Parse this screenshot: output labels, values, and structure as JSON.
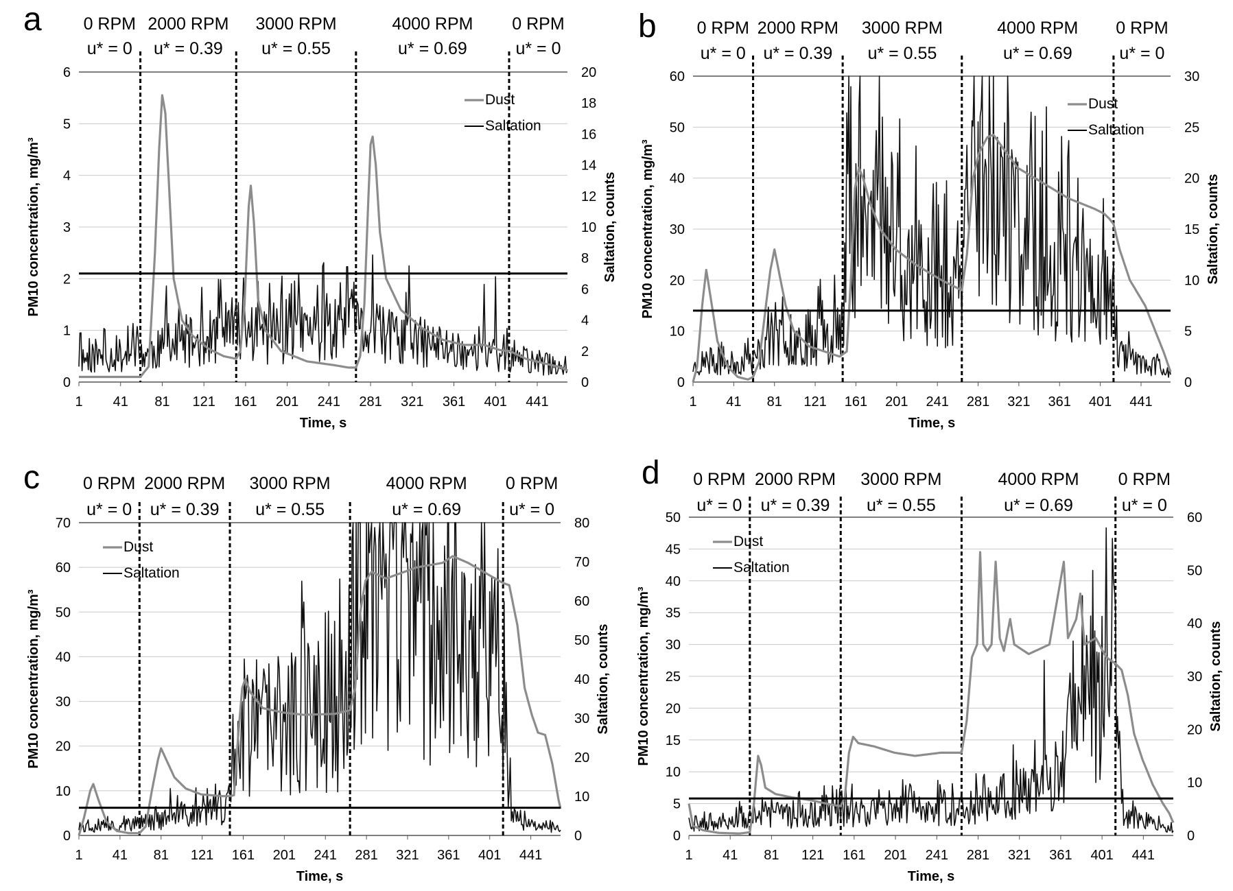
{
  "chart_data": [
    {
      "type": "line",
      "panel_label": "a",
      "xlabel": "Time, s",
      "ylabel": "PM10 concentration, mg/m³",
      "y2label": "Saltation, counts",
      "x_range": [
        1,
        470
      ],
      "x_ticks": [
        "1",
        "41",
        "81",
        "121",
        "161",
        "201",
        "241",
        "281",
        "321",
        "361",
        "401",
        "441"
      ],
      "ylim": [
        0,
        6
      ],
      "y_ticks": [
        "0",
        "1",
        "2",
        "3",
        "4",
        "5",
        "6"
      ],
      "y2lim": [
        0,
        20
      ],
      "y2_ticks": [
        "0",
        "2",
        "4",
        "6",
        "8",
        "10",
        "12",
        "14",
        "16",
        "18",
        "20"
      ],
      "legend": [
        "Dust",
        "Saltation"
      ],
      "legend_position": "top-right",
      "phase_labels": [
        {
          "rpm": "0 RPM",
          "u": "u* = 0"
        },
        {
          "rpm": "2000 RPM",
          "u": "u* = 0.39"
        },
        {
          "rpm": "3000 RPM",
          "u": "u* = 0.55"
        },
        {
          "rpm": "4000 RPM",
          "u": "u* = 0.69"
        },
        {
          "rpm": "0 RPM",
          "u": "u* = 0"
        }
      ],
      "phase_boundaries": [
        60,
        152,
        267,
        414
      ],
      "threshold_y": 2.1,
      "dust_line": [
        [
          1,
          0.1
        ],
        [
          40,
          0.1
        ],
        [
          60,
          0.1
        ],
        [
          68,
          0.3
        ],
        [
          74,
          2.5
        ],
        [
          78,
          4.5
        ],
        [
          81,
          5.55
        ],
        [
          84,
          5.2
        ],
        [
          88,
          3.6
        ],
        [
          92,
          2.0
        ],
        [
          100,
          1.2
        ],
        [
          110,
          0.9
        ],
        [
          125,
          0.65
        ],
        [
          140,
          0.5
        ],
        [
          152,
          0.45
        ],
        [
          156,
          0.6
        ],
        [
          160,
          1.5
        ],
        [
          164,
          3.4
        ],
        [
          166,
          3.8
        ],
        [
          169,
          3.1
        ],
        [
          173,
          1.6
        ],
        [
          180,
          1.0
        ],
        [
          195,
          0.6
        ],
        [
          220,
          0.4
        ],
        [
          245,
          0.33
        ],
        [
          260,
          0.28
        ],
        [
          267,
          0.28
        ],
        [
          271,
          0.5
        ],
        [
          275,
          1.5
        ],
        [
          279,
          3.6
        ],
        [
          281,
          4.6
        ],
        [
          283,
          4.75
        ],
        [
          286,
          4.2
        ],
        [
          290,
          2.9
        ],
        [
          296,
          2.0
        ],
        [
          310,
          1.4
        ],
        [
          330,
          1.05
        ],
        [
          350,
          0.82
        ],
        [
          370,
          0.72
        ],
        [
          390,
          0.72
        ],
        [
          405,
          0.62
        ],
        [
          414,
          0.6
        ],
        [
          420,
          0.55
        ],
        [
          430,
          0.45
        ],
        [
          450,
          0.35
        ],
        [
          465,
          0.28
        ],
        [
          470,
          0.22
        ]
      ],
      "salt_level": [
        [
          1,
          1.5
        ],
        [
          60,
          1.8
        ],
        [
          152,
          3.2
        ],
        [
          267,
          3.3
        ],
        [
          414,
          1.5
        ],
        [
          470,
          1.0
        ]
      ],
      "salt_spikes": [
        [
          85,
          6.2
        ],
        [
          212,
          7.0
        ],
        [
          236,
          7.7
        ],
        [
          283,
          8.2
        ],
        [
          318,
          7.5
        ],
        [
          390,
          6.3
        ],
        [
          401,
          6.8
        ]
      ],
      "salt_seed": 11
    },
    {
      "type": "line",
      "panel_label": "b",
      "xlabel": "Time, s",
      "ylabel": "PM10 concentration, mg/m³",
      "y2label": "Saltation, counts",
      "x_range": [
        1,
        470
      ],
      "x_ticks": [
        "1",
        "41",
        "81",
        "121",
        "161",
        "201",
        "241",
        "281",
        "321",
        "361",
        "401",
        "441"
      ],
      "ylim": [
        0,
        60
      ],
      "y_ticks": [
        "0",
        "10",
        "20",
        "30",
        "40",
        "50",
        "60"
      ],
      "y2lim": [
        0,
        30
      ],
      "y2_ticks": [
        "0",
        "5",
        "10",
        "15",
        "20",
        "25",
        "30"
      ],
      "legend": [
        "Dust",
        "Saltation"
      ],
      "legend_position": "top-right",
      "phase_labels": [
        {
          "rpm": "0 RPM",
          "u": "u* = 0"
        },
        {
          "rpm": "2000 RPM",
          "u": "u* = 0.39"
        },
        {
          "rpm": "3000 RPM",
          "u": "u* = 0.55"
        },
        {
          "rpm": "4000 RPM",
          "u": "u* = 0.69"
        },
        {
          "rpm": "0 RPM",
          "u": "u* = 0"
        }
      ],
      "phase_boundaries": [
        60,
        148,
        265,
        414
      ],
      "threshold_y": 14.0,
      "dust_line": [
        [
          1,
          0
        ],
        [
          5,
          3
        ],
        [
          10,
          15
        ],
        [
          14,
          22
        ],
        [
          18,
          17
        ],
        [
          25,
          8
        ],
        [
          35,
          3
        ],
        [
          45,
          1
        ],
        [
          55,
          0.5
        ],
        [
          60,
          1
        ],
        [
          66,
          4
        ],
        [
          72,
          14
        ],
        [
          77,
          22
        ],
        [
          81,
          26
        ],
        [
          85,
          22
        ],
        [
          92,
          15
        ],
        [
          100,
          10
        ],
        [
          115,
          7
        ],
        [
          130,
          6
        ],
        [
          145,
          5
        ],
        [
          152,
          6
        ],
        [
          156,
          20
        ],
        [
          160,
          38
        ],
        [
          164,
          42
        ],
        [
          168,
          40
        ],
        [
          175,
          35
        ],
        [
          185,
          30
        ],
        [
          200,
          26
        ],
        [
          220,
          23
        ],
        [
          245,
          20
        ],
        [
          265,
          18
        ],
        [
          270,
          25
        ],
        [
          276,
          40
        ],
        [
          282,
          45
        ],
        [
          290,
          48
        ],
        [
          296,
          48.5
        ],
        [
          305,
          46
        ],
        [
          320,
          42
        ],
        [
          345,
          39
        ],
        [
          370,
          36
        ],
        [
          395,
          34
        ],
        [
          405,
          33
        ],
        [
          410,
          32
        ],
        [
          414,
          31
        ],
        [
          420,
          26
        ],
        [
          430,
          20
        ],
        [
          445,
          15
        ],
        [
          455,
          10
        ],
        [
          463,
          6
        ],
        [
          470,
          2
        ]
      ],
      "salt_level": [
        [
          1,
          1.5
        ],
        [
          60,
          2.0
        ],
        [
          70,
          3.5
        ],
        [
          148,
          5.0
        ],
        [
          152,
          17.0
        ],
        [
          180,
          15.0
        ],
        [
          190,
          12.0
        ],
        [
          265,
          8.0
        ],
        [
          268,
          17.0
        ],
        [
          320,
          15.0
        ],
        [
          360,
          11.0
        ],
        [
          414,
          8.0
        ],
        [
          420,
          2.5
        ],
        [
          470,
          1.0
        ]
      ],
      "salt_spikes": [
        [
          164,
          27.0
        ],
        [
          180,
          21.0
        ],
        [
          289,
          21.0
        ],
        [
          300,
          24.0
        ],
        [
          305,
          22.0
        ],
        [
          318,
          22.0
        ],
        [
          379,
          20.0
        ],
        [
          404,
          18.0
        ]
      ],
      "salt_seed": 23
    },
    {
      "type": "line",
      "panel_label": "c",
      "xlabel": "Time, s",
      "ylabel": "PM10 concentration, mg/m³",
      "y2label": "Saltation, counts",
      "x_range": [
        1,
        470
      ],
      "x_ticks": [
        "1",
        "41",
        "81",
        "121",
        "161",
        "201",
        "241",
        "281",
        "321",
        "361",
        "401",
        "441"
      ],
      "ylim": [
        0,
        70
      ],
      "y_ticks": [
        "0",
        "10",
        "20",
        "30",
        "40",
        "50",
        "60",
        "70"
      ],
      "y2lim": [
        0,
        80
      ],
      "y2_ticks": [
        "0",
        "10",
        "20",
        "30",
        "40",
        "50",
        "60",
        "70",
        "80"
      ],
      "legend": [
        "Dust",
        "Saltation"
      ],
      "legend_position": "top-left",
      "phase_labels": [
        {
          "rpm": "0 RPM",
          "u": "u* = 0"
        },
        {
          "rpm": "2000 RPM",
          "u": "u* = 0.39"
        },
        {
          "rpm": "3000 RPM",
          "u": "u* = 0.55"
        },
        {
          "rpm": "4000 RPM",
          "u": "u* = 0.69"
        },
        {
          "rpm": "0 RPM",
          "u": "u* = 0"
        }
      ],
      "phase_boundaries": [
        60,
        148,
        265,
        414
      ],
      "threshold_y": 6.2,
      "dust_line": [
        [
          1,
          0
        ],
        [
          6,
          4
        ],
        [
          12,
          10
        ],
        [
          15,
          11.5
        ],
        [
          20,
          8
        ],
        [
          28,
          3
        ],
        [
          38,
          1
        ],
        [
          50,
          0.5
        ],
        [
          60,
          0.5
        ],
        [
          66,
          2
        ],
        [
          72,
          10
        ],
        [
          78,
          17
        ],
        [
          81,
          19.5
        ],
        [
          86,
          17
        ],
        [
          94,
          13
        ],
        [
          105,
          10.5
        ],
        [
          120,
          9.2
        ],
        [
          140,
          8.8
        ],
        [
          148,
          8.8
        ],
        [
          152,
          9
        ],
        [
          156,
          22
        ],
        [
          160,
          33
        ],
        [
          163,
          35
        ],
        [
          168,
          32
        ],
        [
          180,
          28.5
        ],
        [
          200,
          27.5
        ],
        [
          220,
          27
        ],
        [
          250,
          27.2
        ],
        [
          265,
          28
        ],
        [
          270,
          33
        ],
        [
          275,
          50
        ],
        [
          280,
          57
        ],
        [
          286,
          59
        ],
        [
          300,
          57.5
        ],
        [
          330,
          60
        ],
        [
          355,
          61
        ],
        [
          365,
          62.5
        ],
        [
          380,
          61
        ],
        [
          395,
          59
        ],
        [
          410,
          57
        ],
        [
          414,
          56.5
        ],
        [
          420,
          56
        ],
        [
          428,
          47
        ],
        [
          435,
          33
        ],
        [
          442,
          27
        ],
        [
          448,
          23
        ],
        [
          455,
          22.5
        ],
        [
          462,
          16
        ],
        [
          468,
          8
        ],
        [
          470,
          6
        ]
      ],
      "salt_level": [
        [
          1,
          2
        ],
        [
          60,
          3
        ],
        [
          148,
          7
        ],
        [
          152,
          27
        ],
        [
          265,
          31
        ],
        [
          268,
          55
        ],
        [
          300,
          55
        ],
        [
          330,
          52
        ],
        [
          360,
          47
        ],
        [
          400,
          42
        ],
        [
          414,
          38
        ],
        [
          420,
          10
        ],
        [
          428,
          3
        ],
        [
          470,
          1.5
        ]
      ],
      "salt_spikes": [
        [
          90,
          12
        ],
        [
          230,
          46
        ],
        [
          290,
          74
        ],
        [
          300,
          72
        ],
        [
          315,
          73
        ],
        [
          320,
          70
        ],
        [
          325,
          75
        ],
        [
          352,
          55
        ],
        [
          395,
          48
        ]
      ],
      "salt_seed": 37
    },
    {
      "type": "line",
      "panel_label": "d",
      "xlabel": "Time, s",
      "ylabel": "PM10 concentration, mg/m³",
      "y2label": "Saltation, counts",
      "x_range": [
        1,
        470
      ],
      "x_ticks": [
        "1",
        "41",
        "81",
        "121",
        "161",
        "201",
        "241",
        "281",
        "321",
        "361",
        "401",
        "441"
      ],
      "ylim": [
        0,
        50
      ],
      "y_ticks": [
        "0",
        "5",
        "10",
        "15",
        "20",
        "25",
        "30",
        "35",
        "40",
        "45",
        "50"
      ],
      "y2lim": [
        0,
        60
      ],
      "y2_ticks": [
        "0",
        "10",
        "20",
        "30",
        "40",
        "50",
        "60"
      ],
      "legend": [
        "Dust",
        "Saltation"
      ],
      "legend_position": "top-left",
      "phase_labels": [
        {
          "rpm": "0 RPM",
          "u": "u* = 0"
        },
        {
          "rpm": "2000 RPM",
          "u": "u* = 0.39"
        },
        {
          "rpm": "3000 RPM",
          "u": "u* = 0.55"
        },
        {
          "rpm": "4000 RPM",
          "u": "u* = 0.69"
        },
        {
          "rpm": "0 RPM",
          "u": "u* = 0"
        }
      ],
      "phase_boundaries": [
        60,
        148,
        265,
        414
      ],
      "threshold_y": 5.8,
      "dust_line": [
        [
          1,
          5
        ],
        [
          5,
          1.5
        ],
        [
          15,
          0.8
        ],
        [
          30,
          0.4
        ],
        [
          50,
          0.3
        ],
        [
          60,
          0.5
        ],
        [
          64,
          5
        ],
        [
          68,
          12.5
        ],
        [
          71,
          11
        ],
        [
          75,
          7.5
        ],
        [
          85,
          6.5
        ],
        [
          100,
          6
        ],
        [
          120,
          5.5
        ],
        [
          140,
          4.8
        ],
        [
          148,
          4.6
        ],
        [
          152,
          6
        ],
        [
          156,
          13
        ],
        [
          160,
          15.5
        ],
        [
          165,
          14.5
        ],
        [
          180,
          14
        ],
        [
          200,
          13
        ],
        [
          220,
          12.5
        ],
        [
          245,
          13
        ],
        [
          265,
          13
        ],
        [
          270,
          18
        ],
        [
          275,
          28
        ],
        [
          280,
          30
        ],
        [
          283,
          44.5
        ],
        [
          286,
          30
        ],
        [
          290,
          29
        ],
        [
          294,
          30
        ],
        [
          298,
          43
        ],
        [
          302,
          31
        ],
        [
          306,
          29
        ],
        [
          312,
          34
        ],
        [
          316,
          30
        ],
        [
          330,
          28.5
        ],
        [
          350,
          30
        ],
        [
          364,
          43
        ],
        [
          368,
          31
        ],
        [
          376,
          34
        ],
        [
          380,
          38
        ],
        [
          384,
          30
        ],
        [
          395,
          31
        ],
        [
          405,
          28
        ],
        [
          414,
          27
        ],
        [
          420,
          26
        ],
        [
          426,
          22
        ],
        [
          432,
          16
        ],
        [
          440,
          12
        ],
        [
          450,
          8
        ],
        [
          460,
          5
        ],
        [
          466,
          3.5
        ],
        [
          470,
          2
        ]
      ],
      "salt_level": [
        [
          1,
          2
        ],
        [
          60,
          3
        ],
        [
          148,
          4.5
        ],
        [
          265,
          5
        ],
        [
          300,
          7
        ],
        [
          330,
          8
        ],
        [
          360,
          12
        ],
        [
          380,
          22
        ],
        [
          405,
          28
        ],
        [
          410,
          38
        ],
        [
          414,
          30
        ],
        [
          420,
          4
        ],
        [
          470,
          1
        ]
      ],
      "salt_spikes": [
        [
          345,
          33
        ],
        [
          378,
          28
        ],
        [
          384,
          32
        ],
        [
          411,
          56
        ],
        [
          414,
          43
        ]
      ],
      "salt_seed": 53
    }
  ]
}
